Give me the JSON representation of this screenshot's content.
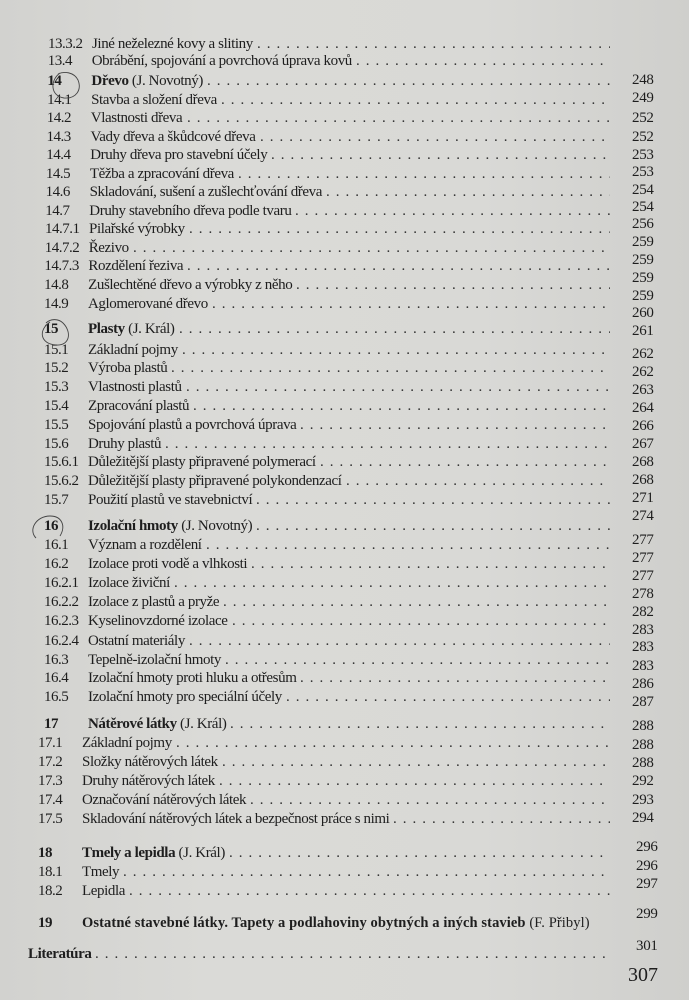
{
  "toc": [
    {
      "num": "13.3.2",
      "title": "Jiné neželezné kovy a slitiny",
      "author": "",
      "page": "248"
    },
    {
      "num": "13.4",
      "title": "Obrábění, spojování a povrchová úprava kovů",
      "author": "",
      "page": "249"
    },
    {
      "num": "14",
      "title": "Dřevo",
      "author": "(J. Novotný)",
      "bold": true,
      "page": "252"
    },
    {
      "num": "14.1",
      "title": "Stavba a složení dřeva",
      "author": "",
      "page": "252"
    },
    {
      "num": "14.2",
      "title": "Vlastnosti dřeva",
      "author": "",
      "page": "253"
    },
    {
      "num": "14.3",
      "title": "Vady dřeva a škůdcové dřeva",
      "author": "",
      "page": "253"
    },
    {
      "num": "14.4",
      "title": "Druhy dřeva pro stavební účely",
      "author": "",
      "page": "254"
    },
    {
      "num": "14.5",
      "title": "Těžba a zpracování dřeva",
      "author": "",
      "page": "254"
    },
    {
      "num": "14.6",
      "title": "Skladování, sušení a zušlechťování dřeva",
      "author": "",
      "page": "256"
    },
    {
      "num": "14.7",
      "title": "Druhy stavebního dřeva podle tvaru",
      "author": "",
      "page": "259"
    },
    {
      "num": "14.7.1",
      "title": "Pilařské výrobky",
      "author": "",
      "page": "259"
    },
    {
      "num": "14.7.2",
      "title": "Řezivo",
      "author": "",
      "page": "259"
    },
    {
      "num": "14.7.3",
      "title": "Rozdělení řeziva",
      "author": "",
      "page": "259"
    },
    {
      "num": "14.8",
      "title": "Zušlechtěné dřevo a výrobky z něho",
      "author": "",
      "page": "260"
    },
    {
      "num": "14.9",
      "title": "Aglomerované dřevo",
      "author": "",
      "page": "261"
    },
    {
      "num": "15",
      "title": "Plasty",
      "author": "(J. Král)",
      "bold": true,
      "page": "262"
    },
    {
      "num": "15.1",
      "title": "Základní pojmy",
      "author": "",
      "page": "262"
    },
    {
      "num": "15.2",
      "title": "Výroba plastů",
      "author": "",
      "page": "263"
    },
    {
      "num": "15.3",
      "title": "Vlastnosti plastů",
      "author": "",
      "page": "264"
    },
    {
      "num": "15.4",
      "title": "Zpracování plastů",
      "author": "",
      "page": "266"
    },
    {
      "num": "15.5",
      "title": "Spojování plastů a povrchová úprava",
      "author": "",
      "page": "267"
    },
    {
      "num": "15.6",
      "title": "Druhy plastů",
      "author": "",
      "page": "268"
    },
    {
      "num": "15.6.1",
      "title": "Důležitější plasty připravené polymerací",
      "author": "",
      "page": "268"
    },
    {
      "num": "15.6.2",
      "title": "Důležitější plasty připravené polykondenzací",
      "author": "",
      "page": "271"
    },
    {
      "num": "15.7",
      "title": "Použití plastů ve stavebnictví",
      "author": "",
      "page": "274"
    },
    {
      "num": "16",
      "title": "Izolační hmoty",
      "author": "(J. Novotný)",
      "bold": true,
      "page": "277"
    },
    {
      "num": "16.1",
      "title": "Význam a rozdělení",
      "author": "",
      "page": "277"
    },
    {
      "num": "16.2",
      "title": "Izolace proti vodě a vlhkosti",
      "author": "",
      "page": "277"
    },
    {
      "num": "16.2.1",
      "title": "Izolace živiční",
      "author": "",
      "page": "278"
    },
    {
      "num": "16.2.2",
      "title": "Izolace z plastů a pryže",
      "author": "",
      "page": "282"
    },
    {
      "num": "16.2.3",
      "title": "Kyselinovzdorné izolace",
      "author": "",
      "page": "283"
    },
    {
      "num": "16.2.4",
      "title": "Ostatní materiály",
      "author": "",
      "page": "283"
    },
    {
      "num": "16.3",
      "title": "Tepelně-izolační hmoty",
      "author": "",
      "page": "283"
    },
    {
      "num": "16.4",
      "title": "Izolační hmoty proti hluku a otřesům",
      "author": "",
      "page": "286"
    },
    {
      "num": "16.5",
      "title": "Izolační hmoty pro speciální účely",
      "author": "",
      "page": "287"
    },
    {
      "num": "17",
      "title": "Nátěrové látky",
      "author": "(J. Král)",
      "bold": true,
      "page": "288"
    },
    {
      "num": "17.1",
      "title": "Základní pojmy",
      "author": "",
      "page": "288"
    },
    {
      "num": "17.2",
      "title": "Složky nátěrových látek",
      "author": "",
      "page": "288"
    },
    {
      "num": "17.3",
      "title": "Druhy nátěrových látek",
      "author": "",
      "page": "292"
    },
    {
      "num": "17.4",
      "title": "Označování nátěrových látek",
      "author": "",
      "page": "293"
    },
    {
      "num": "17.5",
      "title": "Skladování nátěrových látek a bezpečnost práce s nimi",
      "author": "",
      "page": "294"
    },
    {
      "num": "18",
      "title": "Tmely a lepidla",
      "author": "(J. Král)",
      "bold": true,
      "page": "296"
    },
    {
      "num": "18.1",
      "title": "Tmely",
      "author": "",
      "page": "296"
    },
    {
      "num": "18.2",
      "title": "Lepidla",
      "author": "",
      "page": "297"
    },
    {
      "num": "19",
      "title": "Ostatné stavebné látky. Tapety a podlahoviny obytných a iných stavieb",
      "author": "(F. Přibyl)",
      "bold": true,
      "nodots": true,
      "page": "299"
    },
    {
      "num": "",
      "title": "Literatúra",
      "author": "",
      "bold": true,
      "literature": true,
      "page": "301"
    }
  ],
  "folio": "307",
  "circled_chapters": [
    "14",
    "15",
    "16"
  ]
}
